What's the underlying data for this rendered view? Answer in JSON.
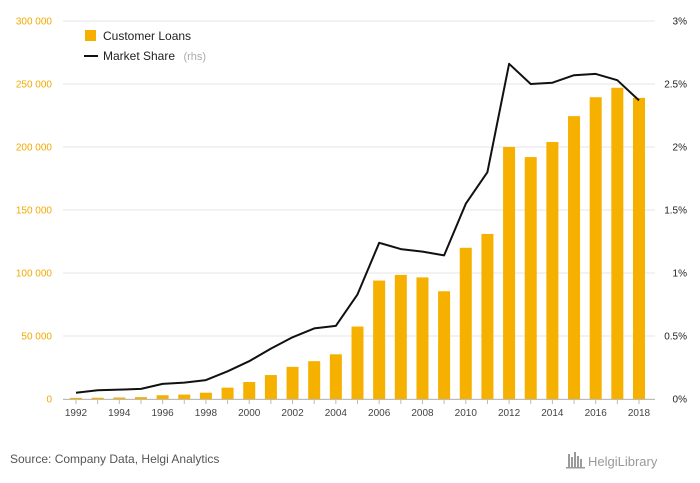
{
  "source": "Source: Company Data, Helgi Analytics",
  "brand": "HelgiLibrary",
  "colors": {
    "bar": "#f5b000",
    "line": "#111111",
    "left_axis_text": "#f2a900",
    "grid": "#e6e6e6"
  },
  "chart_data": {
    "type": "bar",
    "legend_placement": "top-left",
    "grid": true,
    "x": [
      1992,
      1993,
      1994,
      1995,
      1996,
      1997,
      1998,
      1999,
      2000,
      2001,
      2002,
      2003,
      2004,
      2005,
      2006,
      2007,
      2008,
      2009,
      2010,
      2011,
      2012,
      2013,
      2014,
      2015,
      2016,
      2017,
      2018
    ],
    "x_tick_labels": [
      "1992",
      "1994",
      "1996",
      "1998",
      "2000",
      "2002",
      "2004",
      "2006",
      "2008",
      "2010",
      "2012",
      "2014",
      "2016",
      "2018"
    ],
    "y_left": {
      "lim": [
        0,
        300000
      ],
      "ticks": [
        0,
        50000,
        100000,
        150000,
        200000,
        250000,
        300000
      ],
      "tick_labels": [
        "0",
        "50 000",
        "100 000",
        "150 000",
        "200 000",
        "250 000",
        "300 000"
      ]
    },
    "y_right": {
      "lim": [
        0,
        3
      ],
      "ticks": [
        0,
        0.5,
        1,
        1.5,
        2,
        2.5,
        3
      ],
      "tick_labels": [
        "0%",
        "0.5%",
        "1%",
        "1.5%",
        "2%",
        "2.5%",
        "3%"
      ]
    },
    "series": [
      {
        "name": "Customer Loans",
        "unit": "",
        "type": "bar",
        "axis": "left",
        "values": [
          900,
          1000,
          1200,
          1500,
          3000,
          3500,
          5000,
          9000,
          13500,
          19000,
          25500,
          30000,
          35500,
          57500,
          94000,
          98500,
          96500,
          85500,
          120000,
          131000,
          200000,
          192000,
          204000,
          224500,
          239500,
          247000,
          239000
        ]
      },
      {
        "name": "Market Share",
        "unit": "(rhs)",
        "type": "line",
        "axis": "right",
        "values": [
          0.05,
          0.07,
          0.075,
          0.08,
          0.12,
          0.13,
          0.15,
          0.22,
          0.3,
          0.4,
          0.49,
          0.56,
          0.58,
          0.83,
          1.24,
          1.19,
          1.17,
          1.14,
          1.55,
          1.8,
          2.66,
          2.5,
          2.51,
          2.57,
          2.58,
          2.53,
          2.37
        ]
      }
    ]
  }
}
